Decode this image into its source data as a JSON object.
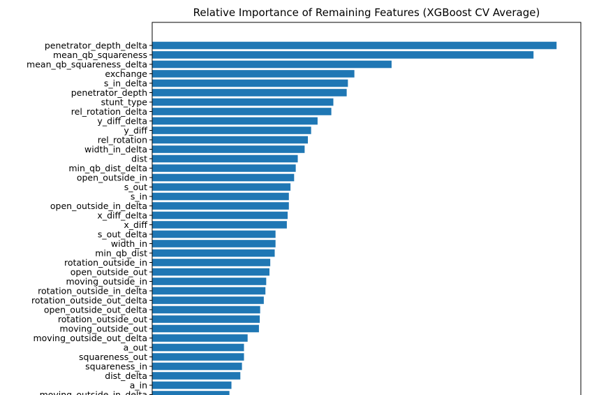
{
  "chart_data": {
    "type": "bar",
    "orientation": "horizontal",
    "title": "Relative Importance of Remaining Features (XGBoost CV Average)",
    "xlabel": "",
    "ylabel": "",
    "bar_color": "#1f77b4",
    "grid": false,
    "xlim": [
      0,
      1.06
    ],
    "categories": [
      "penetrator_depth_delta",
      "mean_qb_squareness",
      "mean_qb_squareness_delta",
      "exchange",
      "s_in_delta",
      "penetrator_depth",
      "stunt_type",
      "rel_rotation_delta",
      "y_diff_delta",
      "y_diff",
      "rel_rotation",
      "width_in_delta",
      "dist",
      "min_qb_dist_delta",
      "open_outside_in",
      "s_out",
      "s_in",
      "open_outside_in_delta",
      "x_diff_delta",
      "x_diff",
      "s_out_delta",
      "width_in",
      "min_qb_dist",
      "rotation_outside_in",
      "open_outside_out",
      "moving_outside_in",
      "rotation_outside_in_delta",
      "rotation_outside_out_delta",
      "open_outside_out_delta",
      "rotation_outside_out",
      "moving_outside_out",
      "moving_outside_out_delta",
      "a_out",
      "squareness_out",
      "squareness_in",
      "dist_delta",
      "a_in",
      "moving_outside_in_delta"
    ],
    "values": [
      1.0,
      0.943,
      0.592,
      0.5,
      0.484,
      0.481,
      0.448,
      0.443,
      0.409,
      0.393,
      0.385,
      0.377,
      0.36,
      0.355,
      0.351,
      0.342,
      0.338,
      0.338,
      0.335,
      0.333,
      0.305,
      0.305,
      0.303,
      0.292,
      0.29,
      0.282,
      0.28,
      0.276,
      0.267,
      0.266,
      0.264,
      0.236,
      0.227,
      0.227,
      0.222,
      0.218,
      0.196,
      0.191
    ]
  }
}
